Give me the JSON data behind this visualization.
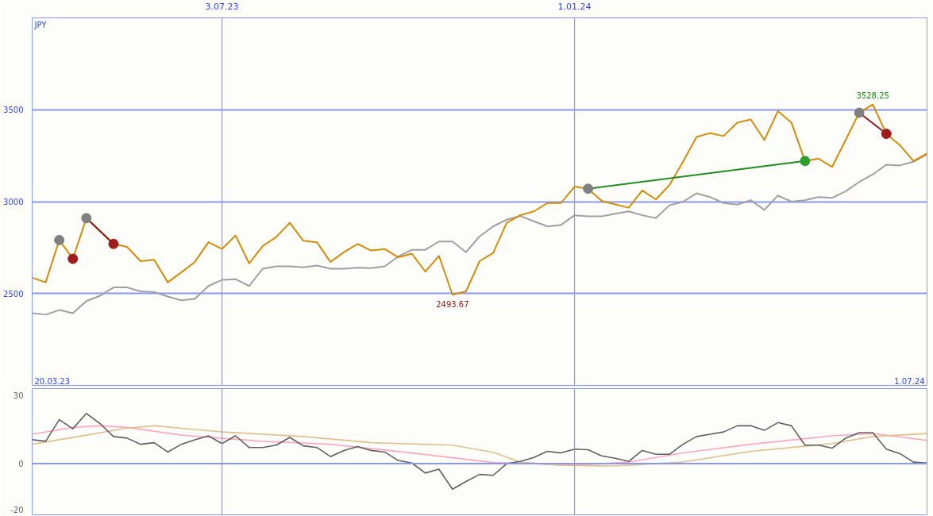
{
  "chart_data": [
    {
      "type": "line",
      "x": [
        "2023-03-27",
        "2023-04-03",
        "2023-04-10",
        "2023-04-17",
        "2023-04-24",
        "2023-05-01",
        "2023-05-08",
        "2023-05-15",
        "2023-05-22",
        "2023-05-29",
        "2023-06-05",
        "2023-06-12",
        "2023-06-19",
        "2023-06-26",
        "2023-07-03",
        "2023-07-10",
        "2023-07-17",
        "2023-07-24",
        "2023-07-31",
        "2023-08-07",
        "2023-08-14",
        "2023-08-21",
        "2023-08-28",
        "2023-09-04",
        "2023-09-11",
        "2023-09-18",
        "2023-09-25",
        "2023-10-02",
        "2023-10-09",
        "2023-10-16",
        "2023-10-23",
        "2023-10-30",
        "2023-11-06",
        "2023-11-13",
        "2023-11-20",
        "2023-11-27",
        "2023-12-04",
        "2023-12-11",
        "2023-12-18",
        "2023-12-25",
        "2024-01-01",
        "2024-01-08",
        "2024-01-15",
        "2024-01-22",
        "2024-01-29",
        "2024-02-05",
        "2024-02-12",
        "2024-02-19",
        "2024-02-26",
        "2024-03-04",
        "2024-03-11",
        "2024-03-18",
        "2024-03-25",
        "2024-04-01",
        "2024-04-08",
        "2024-04-15",
        "2024-04-22",
        "2024-04-29",
        "2024-05-06",
        "2024-05-13",
        "2024-05-20",
        "2024-05-27",
        "2024-06-03",
        "2024-06-10",
        "2024-06-17",
        "2024-06-24",
        "2024-07-01"
      ],
      "series": [
        {
          "color": "#a0a0a0",
          "values": [
            2393,
            2385,
            2410,
            2393,
            2459,
            2488,
            2533,
            2533,
            2512,
            2508,
            2484,
            2463,
            2471,
            2541,
            2574,
            2578,
            2541,
            2635,
            2648,
            2648,
            2643,
            2652,
            2635,
            2635,
            2640,
            2638,
            2648,
            2701,
            2738,
            2738,
            2783,
            2783,
            2725,
            2811,
            2865,
            2902,
            2922,
            2893,
            2865,
            2873,
            2926,
            2920,
            2920,
            2934,
            2947,
            2926,
            2910,
            2980,
            2999,
            3045,
            3025,
            2992,
            2984,
            3008,
            2955,
            3033,
            3000,
            3008,
            3025,
            3020,
            3057,
            3107,
            3148,
            3201,
            3197,
            3217,
            3258
          ]
        },
        {
          "color": "#d28c0a",
          "values": [
            2586,
            2561,
            2791,
            2689,
            2910,
            2840,
            2770,
            2754,
            2676,
            2684,
            2561,
            2615,
            2672,
            2779,
            2742,
            2816,
            2664,
            2758,
            2807,
            2885,
            2787,
            2779,
            2672,
            2725,
            2770,
            2734,
            2742,
            2697,
            2717,
            2619,
            2705,
            2493.67,
            2512,
            2676,
            2721,
            2885,
            2926,
            2947,
            2992,
            2992,
            3082,
            3070,
            3004,
            2985,
            2967,
            3061,
            3012,
            3090,
            3217,
            3352,
            3373,
            3357,
            3430,
            3447,
            3336,
            3492,
            3430,
            3221,
            3234,
            3189,
            3336,
            3484,
            3528.25,
            3369,
            3307,
            3221,
            3262
          ]
        },
        {
          "type": "line",
          "color": "#228b22",
          "x": [
            "2024-01-08",
            "2024-04-29"
          ],
          "values": [
            3070,
            3221
          ]
        },
        {
          "type": "line",
          "color": "#8b1a1a",
          "x": [
            "2023-04-24",
            "2023-05-08"
          ],
          "values": [
            2910,
            2770
          ]
        },
        {
          "type": "line",
          "color": "#8b1a1a",
          "x": [
            "2024-05-27",
            "2024-06-10"
          ],
          "values": [
            3484,
            3369
          ]
        },
        {
          "type": "scatter",
          "marker": "circle",
          "color": "#808080",
          "x": [
            "2023-04-10",
            "2023-04-24",
            "2024-01-08",
            "2024-05-27"
          ],
          "values": [
            2791,
            2910,
            3070,
            3484
          ]
        },
        {
          "type": "scatter",
          "marker": "circle",
          "color": "#a01c1c",
          "x": [
            "2023-04-17",
            "2023-05-08",
            "2024-06-10"
          ],
          "values": [
            2689,
            2770,
            3369
          ]
        },
        {
          "type": "scatter",
          "marker": "circle",
          "color": "#2ca02c",
          "x": [
            "2024-04-29"
          ],
          "values": [
            3221
          ]
        }
      ],
      "xlim": [
        "2023-03-27",
        "2024-07-01"
      ],
      "xticks": [
        {
          "value": "2023-07-03",
          "label": "3.07.23"
        },
        {
          "value": "2024-01-01",
          "label": "1.01.24"
        }
      ],
      "ylim": [
        2000,
        4000
      ],
      "yticks": [
        2500,
        3000,
        3500
      ],
      "grid": true,
      "annotations": [
        "JPY",
        "20.03.23",
        "1.07.24",
        {
          "text": "3528.25",
          "x": "2024-06-03",
          "y": 3528.25
        },
        {
          "text": "2493.67",
          "x": "2023-10-30",
          "y": 2493.67
        }
      ]
    },
    {
      "type": "line",
      "x": [
        "2023-03-27",
        "2023-04-03",
        "2023-04-10",
        "2023-04-17",
        "2023-04-24",
        "2023-05-01",
        "2023-05-08",
        "2023-05-15",
        "2023-05-22",
        "2023-05-29",
        "2023-06-05",
        "2023-06-12",
        "2023-06-19",
        "2023-06-26",
        "2023-07-03",
        "2023-07-10",
        "2023-07-17",
        "2023-07-24",
        "2023-07-31",
        "2023-08-07",
        "2023-08-14",
        "2023-08-21",
        "2023-08-28",
        "2023-09-04",
        "2023-09-11",
        "2023-09-18",
        "2023-09-25",
        "2023-10-02",
        "2023-10-09",
        "2023-10-16",
        "2023-10-23",
        "2023-10-30",
        "2023-11-06",
        "2023-11-13",
        "2023-11-20",
        "2023-11-27",
        "2023-12-04",
        "2023-12-11",
        "2023-12-18",
        "2023-12-25",
        "2024-01-01",
        "2024-01-08",
        "2024-01-15",
        "2024-01-22",
        "2024-01-29",
        "2024-02-05",
        "2024-02-12",
        "2024-02-19",
        "2024-02-26",
        "2024-03-04",
        "2024-03-11",
        "2024-03-18",
        "2024-03-25",
        "2024-04-01",
        "2024-04-08",
        "2024-04-15",
        "2024-04-22",
        "2024-04-29",
        "2024-05-06",
        "2024-05-13",
        "2024-05-20",
        "2024-05-27",
        "2024-06-03",
        "2024-06-10",
        "2024-06-17",
        "2024-06-24",
        "2024-07-01"
      ],
      "series": [
        {
          "color": "#ffa8c4",
          "x": [
            "2023-03-27",
            "2023-04-17",
            "2023-05-01",
            "2023-05-15",
            "2023-06-12",
            "2023-07-24",
            "2023-08-28",
            "2023-10-09",
            "2023-11-20",
            "2023-12-11",
            "2024-01-01",
            "2024-01-29",
            "2024-02-26",
            "2024-04-01",
            "2024-05-13",
            "2024-06-03",
            "2024-07-01"
          ],
          "values": [
            12.9,
            15.9,
            16.6,
            15.9,
            12.5,
            9.8,
            8.5,
            4.7,
            0.5,
            0,
            -0.7,
            0.7,
            4.7,
            8.5,
            12.2,
            13.2,
            10.2
          ]
        },
        {
          "color": "#e0c08c",
          "x": [
            "2023-03-27",
            "2023-04-24",
            "2023-05-15",
            "2023-05-29",
            "2023-07-03",
            "2023-08-14",
            "2023-09-18",
            "2023-10-30",
            "2023-11-20",
            "2023-12-04",
            "2023-12-25",
            "2024-01-22",
            "2024-02-26",
            "2024-04-01",
            "2024-05-13",
            "2024-06-03",
            "2024-07-01"
          ],
          "values": [
            8.5,
            12.5,
            15.6,
            16.6,
            13.9,
            11.9,
            9.2,
            8.1,
            5.0,
            0.7,
            -0.7,
            -1,
            0.7,
            5.4,
            8.8,
            11.9,
            13.2
          ]
        },
        {
          "color": "#606060",
          "values": [
            10.5,
            9.8,
            19.3,
            15.3,
            22,
            17.6,
            11.9,
            11.2,
            8.5,
            9.2,
            5.1,
            8.5,
            10.5,
            12.2,
            8.8,
            12.2,
            7.1,
            7.1,
            8.1,
            11.5,
            7.8,
            7.1,
            3.1,
            5.8,
            7.5,
            5.8,
            5.1,
            1.4,
            0.3,
            -4.1,
            -2.4,
            -11.2,
            -7.8,
            -4.7,
            -5.1,
            0,
            1,
            2.7,
            5.4,
            4.7,
            6.4,
            6.1,
            3.4,
            2.4,
            1,
            5.8,
            4.1,
            4.1,
            8.5,
            11.9,
            12.9,
            13.9,
            16.6,
            16.6,
            14.6,
            18,
            16.6,
            8.1,
            8.1,
            6.8,
            11.2,
            13.6,
            13.6,
            6.4,
            4.4,
            0.7,
            0.3
          ]
        }
      ],
      "xlim": [
        "2023-03-27",
        "2024-07-01"
      ],
      "xticks": [
        {
          "value": "2023-07-03",
          "label": null
        },
        {
          "value": "2024-01-01",
          "label": null
        }
      ],
      "ylim": [
        -22.4,
        32.9
      ],
      "yticks": [
        -20,
        0,
        30
      ],
      "grid": "x",
      "tick_labels": "y",
      "ref_lines": [
        {
          "axis": "y",
          "value": 0,
          "color": "#8899ee"
        }
      ]
    }
  ]
}
